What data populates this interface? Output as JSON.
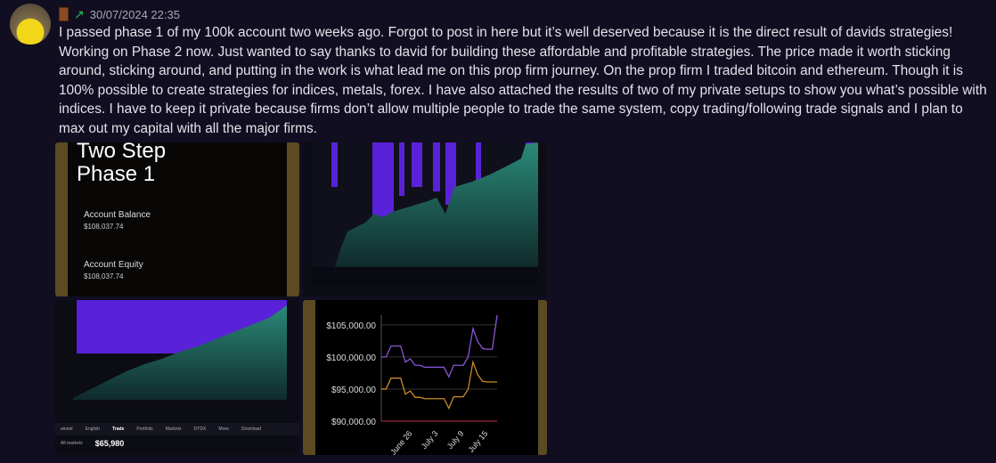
{
  "message": {
    "timestamp": "30/07/2024 22:35",
    "badges": [
      "door-icon",
      "stonks-chart-icon"
    ],
    "text": "I passed phase 1 of my 100k account two weeks ago. Forgot to post in here but it’s well deserved because it is the direct result of davids strategies! Working on Phase 2 now. Just wanted to say thanks to david for building these affordable and profitable strategies. The price made it worth sticking around, sticking around, and putting in the work is what lead me on this prop firm journey. On the prop firm I traded bitcoin and ethereum. Though it is 100% possible to create strategies for indices, metals, forex. I have also attached the results of two of my private setups to show you what’s possible with indices. I have to keep it private because firms don’t allow multiple people to trade the same system, copy trading/following trade signals and I plan to max out my capital with all the major firms."
  },
  "attachments": {
    "account": {
      "title_line1": "Two Step",
      "title_line2": "Phase 1",
      "balance_label": "Account Balance",
      "balance_value": "$108,037.74",
      "equity_label": "Account Equity",
      "equity_value": "$108,037.74"
    },
    "exchange_nav": {
      "network": "ainnet",
      "language": "English",
      "tabs": [
        "Trade",
        "Portfolio",
        "Markets",
        "DYDX",
        "More"
      ],
      "download": "Download",
      "market_selector": "All markets",
      "price": "$65,980"
    }
  },
  "chart_data": {
    "type": "line",
    "x_tick_labels": [
      "June 26",
      "July 3",
      "July 9",
      "July 15"
    ],
    "y_tick_labels": [
      "$105,000.00",
      "$100,000.00",
      "$95,000.00",
      "$90,000.00"
    ],
    "ylim": [
      90000,
      106500
    ],
    "grid": true,
    "colors": {
      "series1": "#8a55d8",
      "series2": "#c88a2a"
    },
    "series": [
      {
        "values": [
          100000,
          100000,
          101700,
          101700,
          101700,
          99200,
          99700,
          98700,
          98700,
          98400,
          98400,
          98400,
          98400,
          98400,
          96900,
          98700,
          98700,
          98700,
          100000,
          104400,
          102400,
          101300,
          101200,
          101200,
          106500
        ]
      },
      {
        "values": [
          95000,
          95000,
          96700,
          96700,
          96700,
          94200,
          94700,
          93700,
          93700,
          93500,
          93500,
          93500,
          93500,
          93500,
          92000,
          93800,
          93800,
          93800,
          95000,
          99200,
          97200,
          96200,
          96100,
          96100,
          96100
        ]
      }
    ]
  }
}
